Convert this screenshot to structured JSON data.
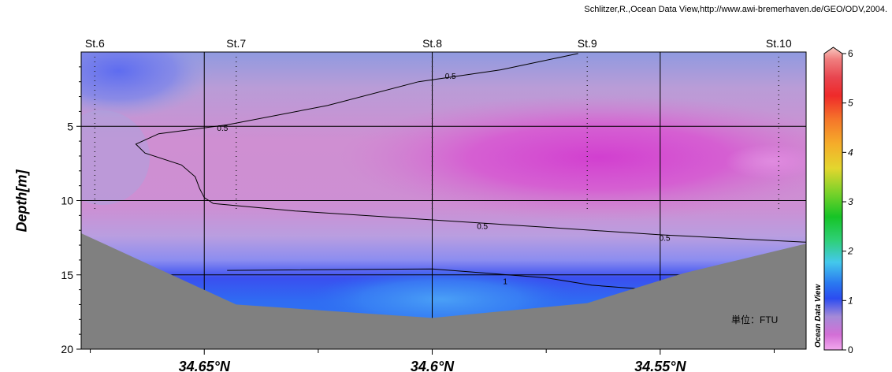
{
  "credit": "Schlitzer,R.,Ocean Data View,http://www.awi-bremerhaven.de/GEO/ODV,2004.",
  "chart_data": {
    "type": "heatmap",
    "ylabel": "Depth[m]",
    "xlim": [
      34.677,
      34.518
    ],
    "ylim": [
      0,
      20
    ],
    "x_tick_labels": [
      {
        "v": 34.65,
        "label": "34.65°N"
      },
      {
        "v": 34.6,
        "label": "34.6°N"
      },
      {
        "v": 34.55,
        "label": "34.55°N"
      }
    ],
    "x_minor_ticks": [
      34.625,
      34.575,
      34.525
    ],
    "y_ticks": [
      5,
      10,
      15,
      20
    ],
    "stations": [
      {
        "name": "St.6",
        "lat": 34.674
      },
      {
        "name": "St.7",
        "lat": 34.643
      },
      {
        "name": "St.8",
        "lat": 34.6
      },
      {
        "name": "St.9",
        "lat": 34.566
      },
      {
        "name": "St.10",
        "lat": 34.524
      }
    ],
    "bottom_profile": [
      [
        34.677,
        12.2
      ],
      [
        34.643,
        17.0
      ],
      [
        34.6,
        17.9
      ],
      [
        34.566,
        16.9
      ],
      [
        34.545,
        14.9
      ],
      [
        34.518,
        12.9
      ]
    ],
    "contours": [
      {
        "label": "0.5",
        "points": [
          [
            34.568,
            0.1
          ],
          [
            34.585,
            1.2
          ],
          [
            34.603,
            2.0
          ],
          [
            34.623,
            3.6
          ],
          [
            34.645,
            4.9
          ],
          [
            34.66,
            5.5
          ],
          [
            34.665,
            6.2
          ],
          [
            34.663,
            6.8
          ],
          [
            34.655,
            7.6
          ],
          [
            34.652,
            8.4
          ],
          [
            34.651,
            9.2
          ],
          [
            34.65,
            9.8
          ],
          [
            34.648,
            10.2
          ],
          [
            34.63,
            10.7
          ],
          [
            34.6,
            11.3
          ],
          [
            34.575,
            11.8
          ],
          [
            34.55,
            12.3
          ],
          [
            34.518,
            12.8
          ]
        ]
      },
      {
        "label": "1",
        "points": [
          [
            34.645,
            14.7
          ],
          [
            34.6,
            14.6
          ],
          [
            34.575,
            15.2
          ],
          [
            34.565,
            15.7
          ],
          [
            34.552,
            16.0
          ]
        ]
      }
    ],
    "contour_labels": [
      {
        "text": "0.5",
        "lat": 34.596,
        "depth": 1.6
      },
      {
        "text": "0.5",
        "lat": 34.646,
        "depth": 5.1
      },
      {
        "text": "0.5",
        "lat": 34.589,
        "depth": 11.7
      },
      {
        "text": "0.5",
        "lat": 34.549,
        "depth": 12.5
      },
      {
        "text": "1",
        "lat": 34.584,
        "depth": 15.4
      }
    ],
    "colorbar": {
      "min": 0,
      "max": 6,
      "ticks": [
        0,
        1,
        2,
        3,
        4,
        5,
        6
      ],
      "label": "Ocean Data View"
    },
    "unit_label": "単位：FTU",
    "field_colors": {
      "upper_left": "#7b84e8",
      "mid": "#cf8ed0",
      "core": "#d451d0",
      "deep": "#2d6cf0",
      "deep_core": "#3d8ef4",
      "bottom": "#808080"
    }
  }
}
